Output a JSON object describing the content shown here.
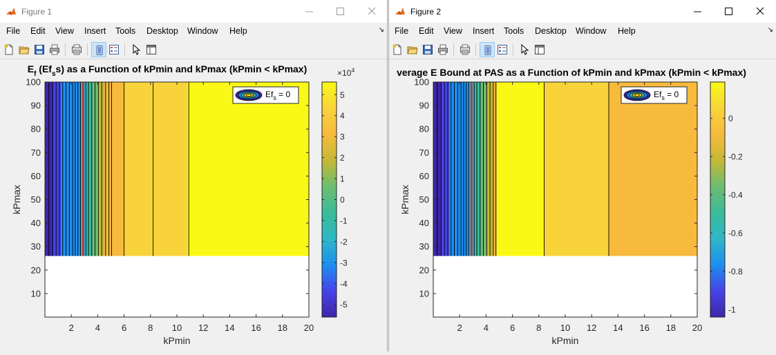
{
  "colors": {
    "c0": "#3e26a8",
    "c1": "#4743e9",
    "c2": "#1d8ff0",
    "c3": "#2eb7c6",
    "c4": "#3bbb98",
    "c5": "#6dbd71",
    "c6": "#c5b935",
    "c7": "#f7ba3d",
    "c8": "#f8d43a",
    "c9": "#f9f816",
    "redline": "#e0251f"
  },
  "icons": [
    "new-figure-icon",
    "open-file-icon",
    "save-icon",
    "print-icon",
    "print-preview-icon",
    "link-plot-icon",
    "insert-legend-icon",
    "pointer-icon",
    "property-editor-icon"
  ],
  "windows": [
    {
      "title": "Figure 1",
      "menus": [
        "File",
        "Edit",
        "View",
        "Insert",
        "Tools",
        "Desktop",
        "Window",
        "Help"
      ],
      "chart_data": {
        "type": "heatmap",
        "title_main": "E",
        "title_sub1": "f",
        "title_mid": " (Ef",
        "title_sub2": "s",
        "title_end": "s) as a Function of kPmin and kPmax (kPmin < kPmax)",
        "xlabel": "kPmin",
        "ylabel": "kPmax",
        "xlim": [
          0,
          20
        ],
        "ylim": [
          0,
          100
        ],
        "data_ymin": 26,
        "xticks": [
          "2",
          "4",
          "6",
          "8",
          "10",
          "12",
          "14",
          "16",
          "18",
          "20"
        ],
        "yticks": [
          "10",
          "20",
          "30",
          "40",
          "50",
          "60",
          "70",
          "80",
          "90",
          "100"
        ],
        "legend": {
          "label": "Ef",
          "sub": "s",
          "rest": " = 0",
          "placement": "top-right"
        },
        "colorbar": {
          "ticks": [
            "-5",
            "-4",
            "-3",
            "-2",
            "-1",
            "0",
            "1",
            "2",
            "3",
            "4",
            "5"
          ],
          "exponent_base": "×10",
          "exponent_power": "4",
          "range": [
            -5.6,
            5.6
          ]
        },
        "zero_contour_x": 2.9,
        "bands": [
          {
            "x0": 0,
            "x1": 0.6,
            "c": "c0"
          },
          {
            "x0": 0.6,
            "x1": 1.2,
            "c": "c1"
          },
          {
            "x0": 1.2,
            "x1": 2.0,
            "c": "c2"
          },
          {
            "x0": 2.0,
            "x1": 2.7,
            "c": "c2"
          },
          {
            "x0": 2.7,
            "x1": 3.2,
            "c": "c3"
          },
          {
            "x0": 3.2,
            "x1": 3.6,
            "c": "c4"
          },
          {
            "x0": 3.6,
            "x1": 4.0,
            "c": "c5"
          },
          {
            "x0": 4.0,
            "x1": 4.5,
            "c": "c6"
          },
          {
            "x0": 4.5,
            "x1": 6.0,
            "c": "c7"
          },
          {
            "x0": 6.0,
            "x1": 10.8,
            "c": "c8"
          },
          {
            "x0": 10.8,
            "x1": 20,
            "c": "c9"
          }
        ],
        "contours": [
          0.3,
          0.6,
          0.85,
          1.1,
          1.35,
          1.6,
          1.85,
          2.1,
          2.3,
          2.5,
          2.7,
          3.1,
          3.3,
          3.55,
          3.8,
          4.05,
          4.3,
          4.6,
          4.85,
          5.05,
          6.0,
          8.2,
          10.9
        ]
      }
    },
    {
      "title": "Figure 2",
      "menus": [
        "File",
        "Edit",
        "View",
        "Insert",
        "Tools",
        "Desktop",
        "Window",
        "Help"
      ],
      "chart_data": {
        "type": "heatmap",
        "title_main": "verage E Bound at PAS as a Function of kPmin and kPmax (kPmin < kPmax)",
        "xlabel": "kPmin",
        "ylabel": "kPmax",
        "xlim": [
          0,
          20
        ],
        "ylim": [
          0,
          100
        ],
        "data_ymin": 26,
        "xticks": [
          "2",
          "4",
          "6",
          "8",
          "10",
          "12",
          "14",
          "16",
          "18",
          "20"
        ],
        "yticks": [
          "10",
          "20",
          "30",
          "40",
          "50",
          "60",
          "70",
          "80",
          "90",
          "100"
        ],
        "legend": {
          "label": "Ef",
          "sub": "s",
          "rest": " = 0",
          "placement": "top-right"
        },
        "colorbar": {
          "ticks": [
            "0",
            "-0.2",
            "-0.4",
            "-0.6",
            "-0.8",
            "-1"
          ],
          "exponent_base": "",
          "exponent_power": "",
          "range": [
            -1.04,
            0.19
          ]
        },
        "zero_contour_x": 2.9,
        "bands": [
          {
            "x0": 0,
            "x1": 0.6,
            "c": "c0"
          },
          {
            "x0": 0.6,
            "x1": 1.2,
            "c": "c1"
          },
          {
            "x0": 1.2,
            "x1": 2.0,
            "c": "c2"
          },
          {
            "x0": 2.0,
            "x1": 2.7,
            "c": "c2"
          },
          {
            "x0": 2.7,
            "x1": 3.2,
            "c": "c3"
          },
          {
            "x0": 3.2,
            "x1": 3.6,
            "c": "c4"
          },
          {
            "x0": 3.6,
            "x1": 4.0,
            "c": "c5"
          },
          {
            "x0": 4.0,
            "x1": 4.5,
            "c": "c6"
          },
          {
            "x0": 4.5,
            "x1": 4.8,
            "c": "c7"
          },
          {
            "x0": 4.8,
            "x1": 8.4,
            "c": "c9"
          },
          {
            "x0": 8.4,
            "x1": 13.3,
            "c": "c8"
          },
          {
            "x0": 13.3,
            "x1": 20,
            "c": "c7"
          }
        ],
        "contours": [
          0.3,
          0.6,
          0.85,
          1.1,
          1.35,
          1.6,
          1.85,
          2.1,
          2.3,
          2.5,
          2.7,
          3.1,
          3.3,
          3.55,
          3.8,
          4.05,
          4.3,
          4.55,
          4.75,
          8.4,
          13.3
        ]
      }
    }
  ]
}
